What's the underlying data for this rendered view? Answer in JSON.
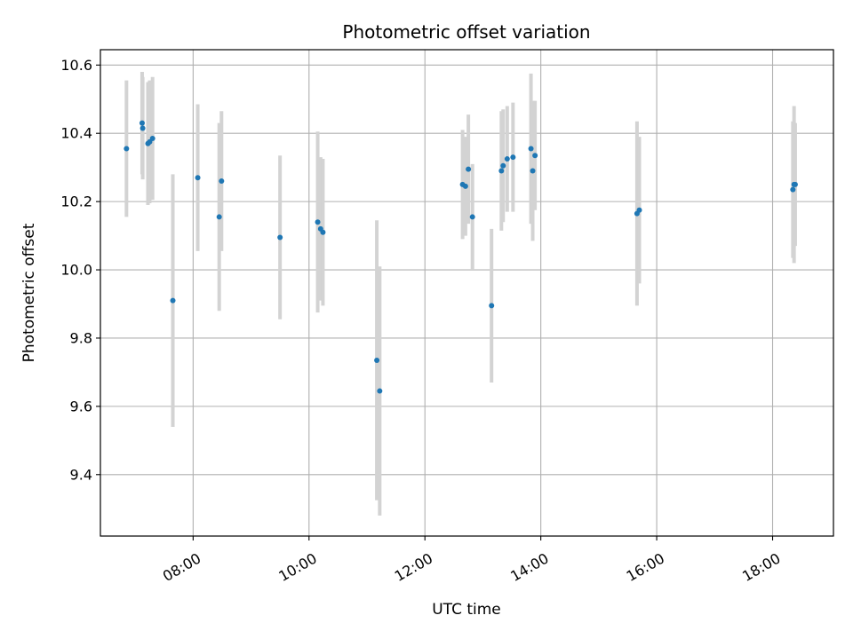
{
  "chart_data": {
    "type": "scatter",
    "title": "Photometric offset variation",
    "xlabel": "UTC time",
    "ylabel": "Photometric offset",
    "x_unit": "hours UTC",
    "xlim": [
      6.4,
      19.05
    ],
    "ylim": [
      9.22,
      10.645
    ],
    "xticks": [
      {
        "value": 8,
        "label": "08:00"
      },
      {
        "value": 10,
        "label": "10:00"
      },
      {
        "value": 12,
        "label": "12:00"
      },
      {
        "value": 14,
        "label": "14:00"
      },
      {
        "value": 16,
        "label": "16:00"
      },
      {
        "value": 18,
        "label": "18:00"
      }
    ],
    "yticks": [
      {
        "value": 9.4,
        "label": "9.4"
      },
      {
        "value": 9.6,
        "label": "9.6"
      },
      {
        "value": 9.8,
        "label": "9.8"
      },
      {
        "value": 10.0,
        "label": "10.0"
      },
      {
        "value": 10.2,
        "label": "10.2"
      },
      {
        "value": 10.4,
        "label": "10.4"
      },
      {
        "value": 10.6,
        "label": "10.6"
      }
    ],
    "grid": true,
    "marker_color": "#1f77b4",
    "errorbar_color": "#d3d3d3",
    "points": [
      {
        "x": 6.85,
        "y": 10.355,
        "err": 0.2
      },
      {
        "x": 7.12,
        "y": 10.43,
        "err": 0.15
      },
      {
        "x": 7.13,
        "y": 10.415,
        "err": 0.15
      },
      {
        "x": 7.22,
        "y": 10.37,
        "err": 0.18
      },
      {
        "x": 7.25,
        "y": 10.375,
        "err": 0.18
      },
      {
        "x": 7.3,
        "y": 10.385,
        "err": 0.18
      },
      {
        "x": 7.65,
        "y": 9.91,
        "err": 0.37
      },
      {
        "x": 8.08,
        "y": 10.27,
        "err": 0.215
      },
      {
        "x": 8.45,
        "y": 10.155,
        "err": 0.275
      },
      {
        "x": 8.49,
        "y": 10.26,
        "err": 0.205
      },
      {
        "x": 9.5,
        "y": 10.095,
        "err": 0.24
      },
      {
        "x": 10.15,
        "y": 10.14,
        "err": 0.265
      },
      {
        "x": 10.2,
        "y": 10.12,
        "err": 0.21
      },
      {
        "x": 10.24,
        "y": 10.11,
        "err": 0.215
      },
      {
        "x": 11.17,
        "y": 9.735,
        "err": 0.41
      },
      {
        "x": 11.22,
        "y": 9.645,
        "err": 0.365
      },
      {
        "x": 12.65,
        "y": 10.25,
        "err": 0.16
      },
      {
        "x": 12.7,
        "y": 10.245,
        "err": 0.145
      },
      {
        "x": 12.75,
        "y": 10.295,
        "err": 0.16
      },
      {
        "x": 12.82,
        "y": 10.155,
        "err": 0.155
      },
      {
        "x": 13.15,
        "y": 9.895,
        "err": 0.225
      },
      {
        "x": 13.32,
        "y": 10.29,
        "err": 0.175
      },
      {
        "x": 13.35,
        "y": 10.305,
        "err": 0.165
      },
      {
        "x": 13.42,
        "y": 10.325,
        "err": 0.155
      },
      {
        "x": 13.52,
        "y": 10.33,
        "err": 0.16
      },
      {
        "x": 13.83,
        "y": 10.355,
        "err": 0.22
      },
      {
        "x": 13.86,
        "y": 10.29,
        "err": 0.205
      },
      {
        "x": 13.9,
        "y": 10.335,
        "err": 0.16
      },
      {
        "x": 15.66,
        "y": 10.165,
        "err": 0.27
      },
      {
        "x": 15.7,
        "y": 10.175,
        "err": 0.215
      },
      {
        "x": 18.35,
        "y": 10.235,
        "err": 0.2
      },
      {
        "x": 18.37,
        "y": 10.25,
        "err": 0.23
      },
      {
        "x": 18.39,
        "y": 10.25,
        "err": 0.18
      }
    ]
  }
}
